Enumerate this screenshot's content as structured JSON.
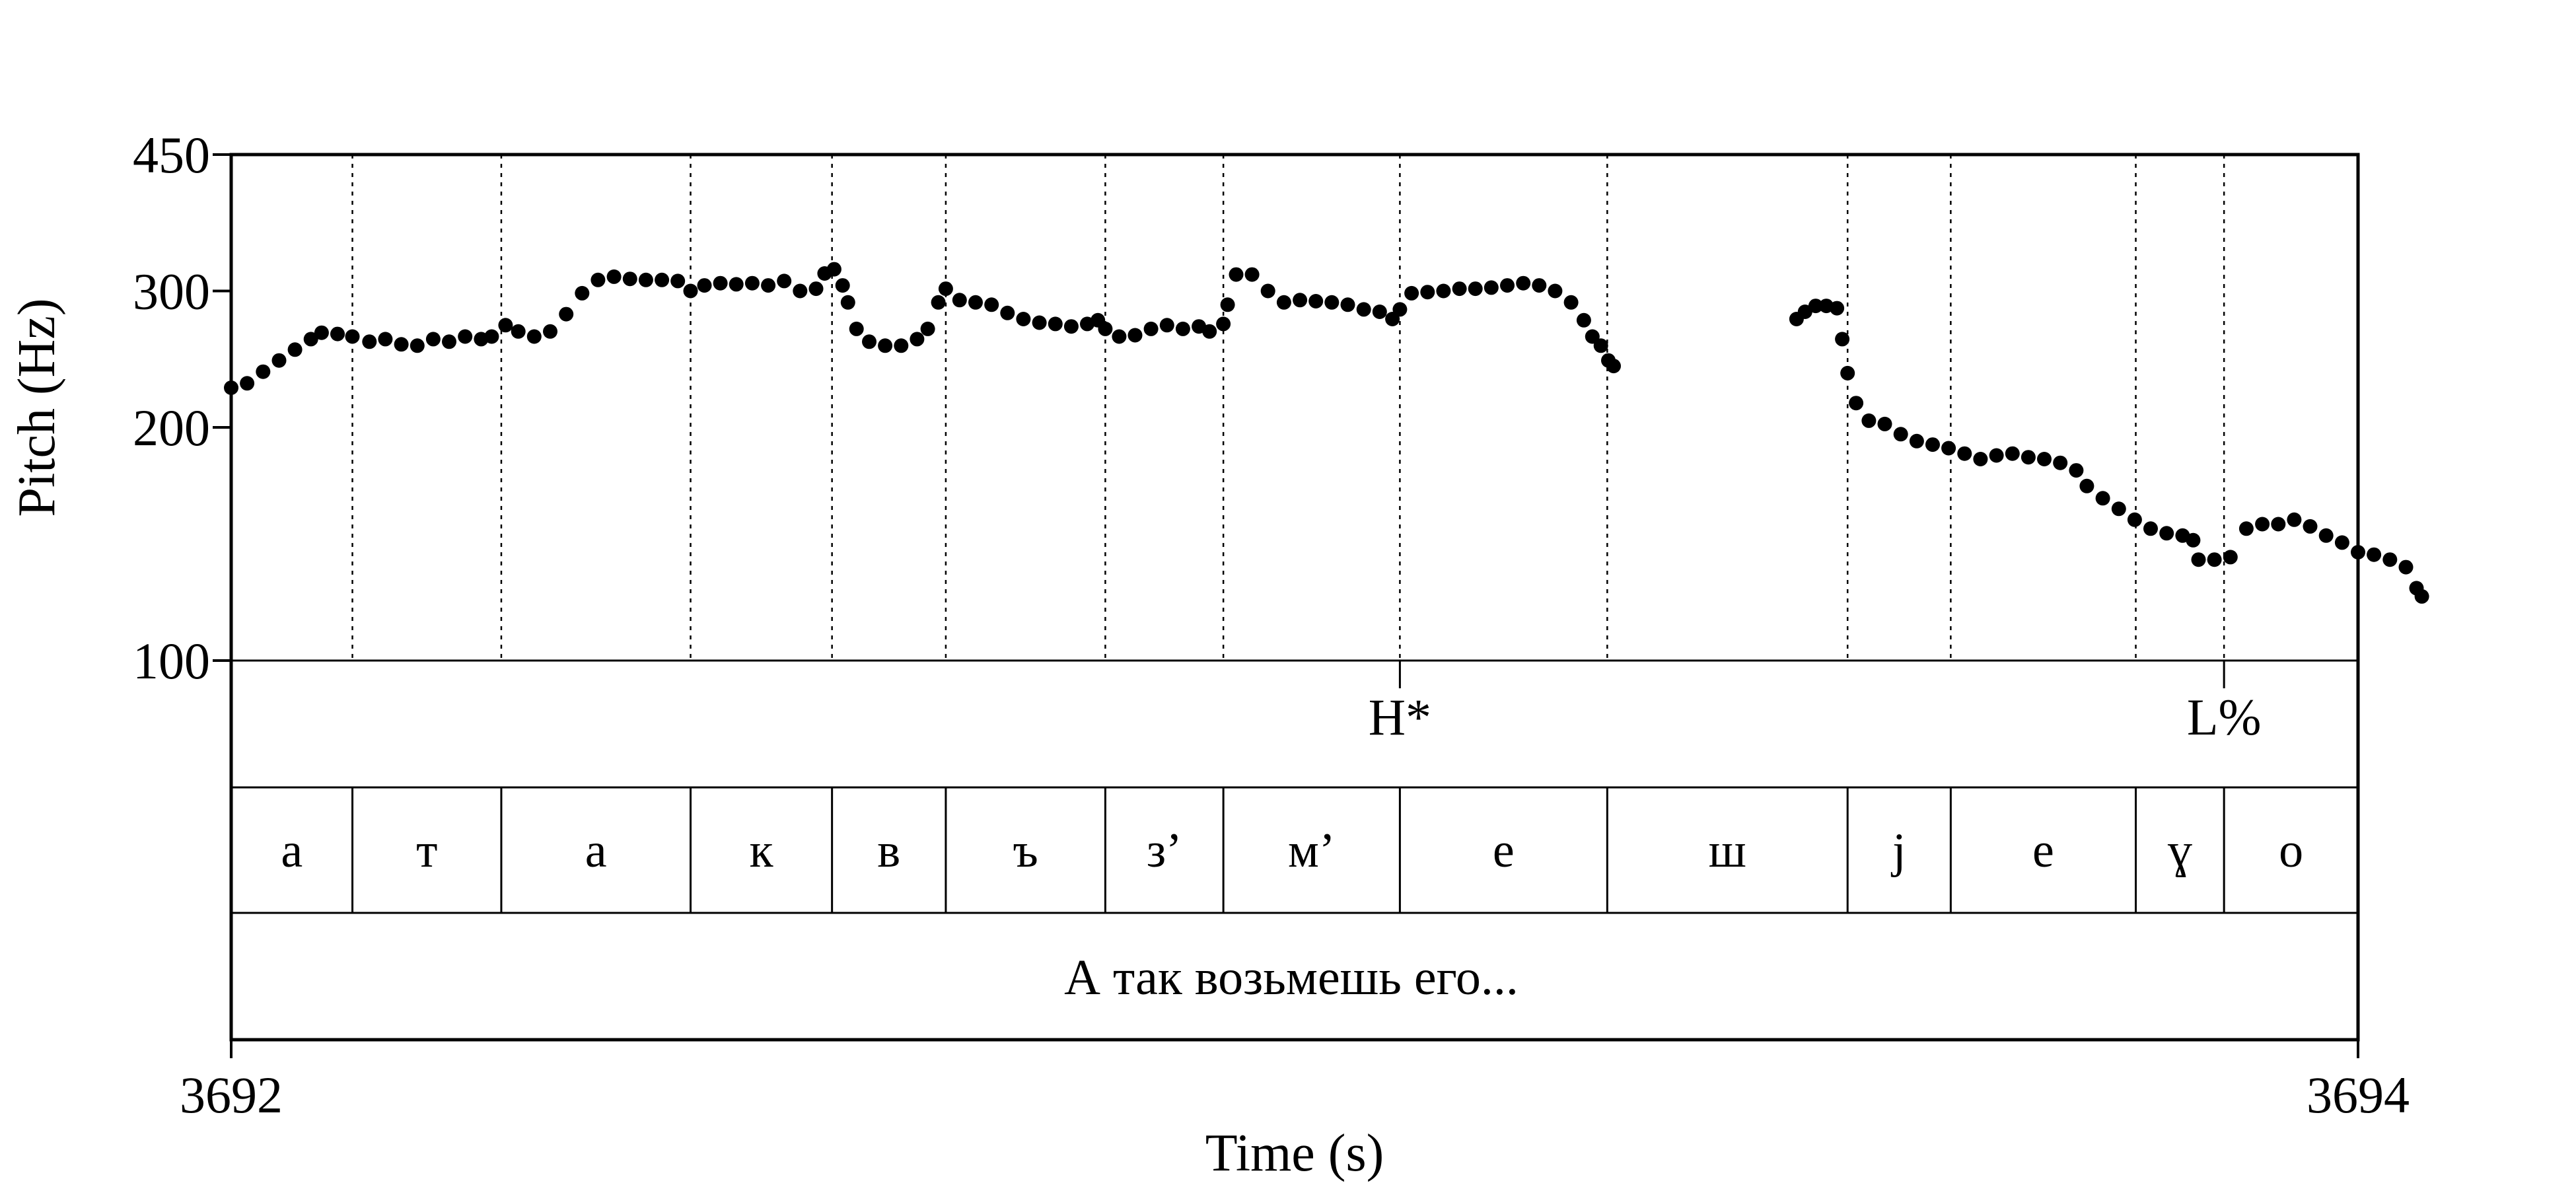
{
  "chart_data": {
    "type": "scatter",
    "xlabel": "Time (s)",
    "ylabel": "Pitch (Hz)",
    "xlim": [
      3692,
      3694
    ],
    "ylim": [
      100,
      450
    ],
    "y_scale": "log",
    "x_ticks": [
      {
        "value": 3692,
        "label": "3692"
      },
      {
        "value": 3694,
        "label": "3694"
      }
    ],
    "y_ticks": [
      {
        "value": 450,
        "label": "450"
      },
      {
        "value": 300,
        "label": "300"
      },
      {
        "value": 200,
        "label": "200"
      },
      {
        "value": 100,
        "label": "100"
      }
    ],
    "boundaries": [
      3692.114,
      3692.254,
      3692.432,
      3692.565,
      3692.672,
      3692.822,
      3692.933,
      3693.099,
      3693.294,
      3693.52,
      3693.617,
      3693.791,
      3693.874
    ],
    "segments": [
      {
        "label": "а",
        "start": 3692.0,
        "end": 3692.114
      },
      {
        "label": "т",
        "start": 3692.114,
        "end": 3692.254
      },
      {
        "label": "а",
        "start": 3692.254,
        "end": 3692.432
      },
      {
        "label": "к",
        "start": 3692.432,
        "end": 3692.565
      },
      {
        "label": "в",
        "start": 3692.565,
        "end": 3692.672
      },
      {
        "label": "ъ",
        "start": 3692.672,
        "end": 3692.822
      },
      {
        "label": "з’",
        "start": 3692.822,
        "end": 3692.933
      },
      {
        "label": "м’",
        "start": 3692.933,
        "end": 3693.099
      },
      {
        "label": "е",
        "start": 3693.099,
        "end": 3693.294
      },
      {
        "label": "ш",
        "start": 3693.294,
        "end": 3693.52
      },
      {
        "label": "j",
        "start": 3693.52,
        "end": 3693.617
      },
      {
        "label": "е",
        "start": 3693.617,
        "end": 3693.791
      },
      {
        "label": "ɣ",
        "start": 3693.791,
        "end": 3693.874
      },
      {
        "label": "о",
        "start": 3693.874,
        "end": 3694.0
      }
    ],
    "tones": [
      {
        "label": "H*",
        "time": 3693.099
      },
      {
        "label": "L%",
        "time": 3693.874
      }
    ],
    "sentence": "А так возьмешь его...",
    "pitch_contours": [
      [
        [
          3692.0,
          225
        ],
        [
          3692.015,
          228
        ],
        [
          3692.03,
          236
        ],
        [
          3692.045,
          244
        ],
        [
          3692.06,
          252
        ],
        [
          3692.075,
          260
        ],
        [
          3692.085,
          265
        ],
        [
          3692.1,
          264
        ],
        [
          3692.114,
          262
        ],
        [
          3692.13,
          258
        ],
        [
          3692.145,
          260
        ],
        [
          3692.16,
          256
        ],
        [
          3692.175,
          255
        ],
        [
          3692.19,
          260
        ],
        [
          3692.205,
          258
        ],
        [
          3692.22,
          262
        ],
        [
          3692.235,
          260
        ],
        [
          3692.245,
          262
        ]
      ],
      [
        [
          3692.258,
          271
        ],
        [
          3692.27,
          266
        ],
        [
          3692.285,
          262
        ],
        [
          3692.3,
          266
        ],
        [
          3692.315,
          280
        ],
        [
          3692.33,
          298
        ],
        [
          3692.345,
          310
        ],
        [
          3692.36,
          313
        ],
        [
          3692.375,
          311
        ],
        [
          3692.39,
          310
        ],
        [
          3692.405,
          310
        ],
        [
          3692.42,
          309
        ],
        [
          3692.432,
          300
        ],
        [
          3692.445,
          305
        ],
        [
          3692.46,
          307
        ],
        [
          3692.475,
          306
        ],
        [
          3692.49,
          307
        ],
        [
          3692.505,
          305
        ],
        [
          3692.52,
          309
        ],
        [
          3692.535,
          300
        ],
        [
          3692.55,
          302
        ],
        [
          3692.558,
          316
        ],
        [
          3692.567,
          320
        ],
        [
          3692.575,
          305
        ],
        [
          3692.58,
          290
        ],
        [
          3692.588,
          268
        ],
        [
          3692.6,
          258
        ],
        [
          3692.615,
          255
        ],
        [
          3692.63,
          255
        ],
        [
          3692.645,
          260
        ],
        [
          3692.655,
          268
        ],
        [
          3692.665,
          290
        ],
        [
          3692.672,
          302
        ],
        [
          3692.685,
          292
        ],
        [
          3692.7,
          290
        ],
        [
          3692.715,
          288
        ],
        [
          3692.73,
          281
        ],
        [
          3692.745,
          276
        ],
        [
          3692.76,
          273
        ],
        [
          3692.775,
          272
        ],
        [
          3692.79,
          270
        ],
        [
          3692.805,
          272
        ],
        [
          3692.815,
          275
        ],
        [
          3692.822,
          268
        ],
        [
          3692.835,
          262
        ],
        [
          3692.85,
          263
        ],
        [
          3692.865,
          268
        ],
        [
          3692.88,
          271
        ],
        [
          3692.895,
          268
        ],
        [
          3692.91,
          270
        ],
        [
          3692.92,
          266
        ],
        [
          3692.933,
          272
        ]
      ],
      [
        [
          3692.937,
          288
        ],
        [
          3692.945,
          315
        ],
        [
          3692.96,
          315
        ],
        [
          3692.975,
          300
        ],
        [
          3692.99,
          290
        ],
        [
          3693.005,
          292
        ],
        [
          3693.02,
          291
        ],
        [
          3693.035,
          290
        ],
        [
          3693.05,
          288
        ],
        [
          3693.065,
          284
        ],
        [
          3693.08,
          282
        ],
        [
          3693.092,
          276
        ],
        [
          3693.099,
          284
        ],
        [
          3693.11,
          298
        ],
        [
          3693.125,
          299
        ],
        [
          3693.14,
          300
        ],
        [
          3693.155,
          302
        ],
        [
          3693.17,
          302
        ],
        [
          3693.185,
          303
        ],
        [
          3693.2,
          305
        ],
        [
          3693.215,
          307
        ],
        [
          3693.23,
          305
        ],
        [
          3693.245,
          300
        ],
        [
          3693.26,
          290
        ],
        [
          3693.272,
          275
        ],
        [
          3693.28,
          262
        ],
        [
          3693.288,
          255
        ],
        [
          3693.295,
          244
        ],
        [
          3693.3,
          240
        ]
      ],
      [
        [
          3693.472,
          276
        ],
        [
          3693.48,
          282
        ],
        [
          3693.49,
          287
        ],
        [
          3693.5,
          287
        ],
        [
          3693.51,
          285
        ],
        [
          3693.515,
          260
        ],
        [
          3693.52,
          235
        ],
        [
          3693.528,
          215
        ],
        [
          3693.54,
          204
        ],
        [
          3693.555,
          202
        ],
        [
          3693.57,
          196
        ],
        [
          3693.585,
          192
        ],
        [
          3693.6,
          190
        ],
        [
          3693.615,
          188
        ],
        [
          3693.63,
          185
        ],
        [
          3693.645,
          182
        ],
        [
          3693.66,
          184
        ],
        [
          3693.675,
          185
        ],
        [
          3693.69,
          183
        ],
        [
          3693.705,
          182
        ],
        [
          3693.72,
          180
        ],
        [
          3693.735,
          176
        ],
        [
          3693.745,
          168
        ],
        [
          3693.76,
          162
        ],
        [
          3693.775,
          157
        ],
        [
          3693.79,
          152
        ],
        [
          3693.805,
          148
        ],
        [
          3693.82,
          146
        ],
        [
          3693.835,
          145
        ],
        [
          3693.845,
          143
        ],
        [
          3693.85,
          135
        ],
        [
          3693.865,
          135
        ],
        [
          3693.88,
          136
        ],
        [
          3693.895,
          148
        ],
        [
          3693.91,
          150
        ],
        [
          3693.925,
          150
        ],
        [
          3693.94,
          152
        ],
        [
          3693.955,
          149
        ],
        [
          3693.97,
          145
        ],
        [
          3693.985,
          142
        ],
        [
          3694.0,
          138
        ],
        [
          3694.015,
          137
        ],
        [
          3694.03,
          135
        ],
        [
          3694.045,
          132
        ],
        [
          3694.055,
          124
        ],
        [
          3694.06,
          121
        ]
      ]
    ]
  }
}
